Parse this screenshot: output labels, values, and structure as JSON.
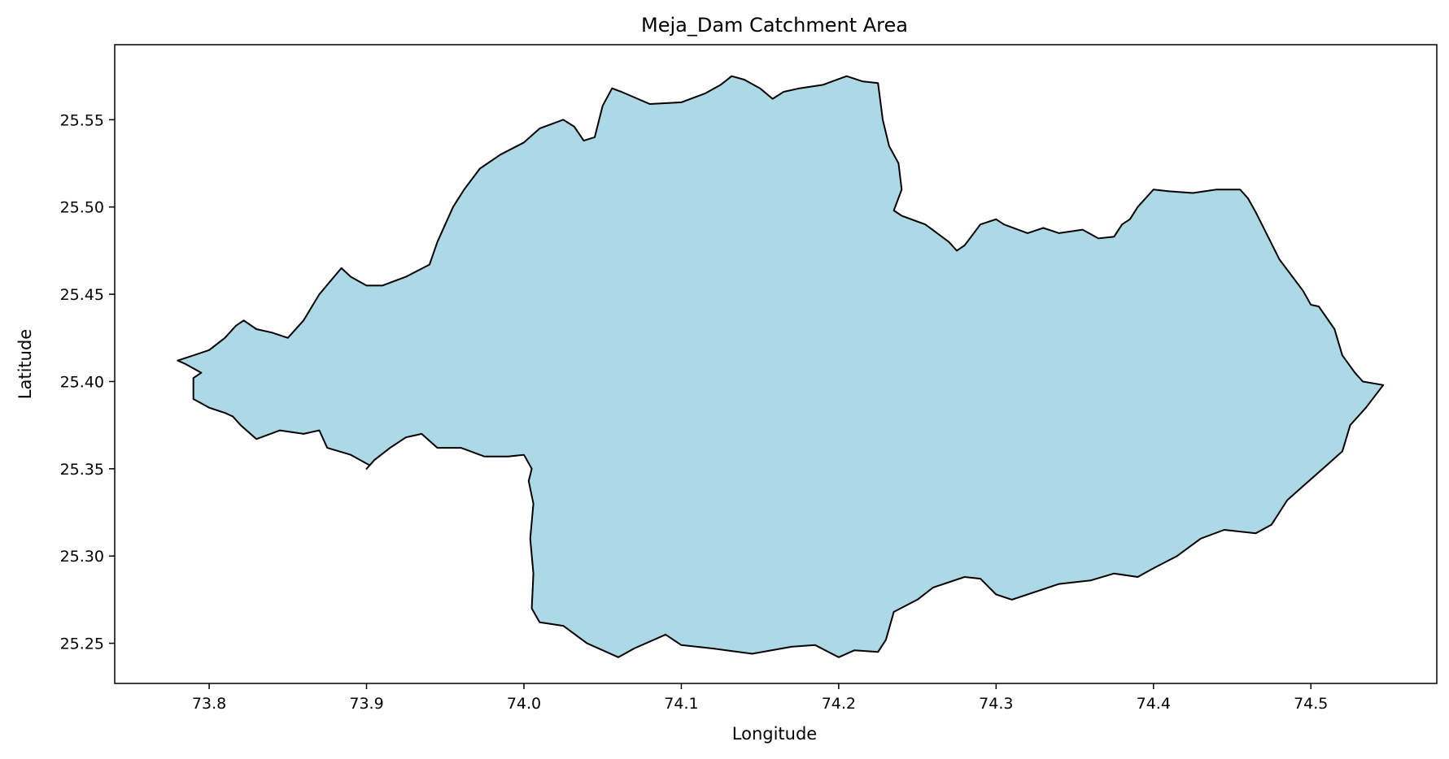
{
  "figure": {
    "title": "Meja_Dam Catchment Area",
    "xlabel": "Longitude",
    "ylabel": "Latitude",
    "background_color": "#ffffff"
  },
  "chart_data": {
    "type": "area",
    "title": "Meja_Dam Catchment Area",
    "xlabel": "Longitude",
    "ylabel": "Latitude",
    "xlim": [
      73.74,
      74.58
    ],
    "ylim": [
      25.227,
      25.593
    ],
    "x_ticks": [
      73.8,
      73.9,
      74.0,
      74.1,
      74.2,
      74.3,
      74.4,
      74.5
    ],
    "x_tick_labels": [
      "73.8",
      "73.9",
      "74.0",
      "74.1",
      "74.2",
      "74.3",
      "74.4",
      "74.5"
    ],
    "y_ticks": [
      25.25,
      25.3,
      25.35,
      25.4,
      25.45,
      25.5,
      25.55
    ],
    "y_tick_labels": [
      "25.25",
      "25.30",
      "25.35",
      "25.40",
      "25.45",
      "25.50",
      "25.55"
    ],
    "grid": false,
    "fill_color": "#add8e6",
    "edge_color": "#000000",
    "polygon": {
      "lon": [
        73.78,
        73.79,
        73.8,
        73.81,
        73.817,
        73.822,
        73.83,
        73.84,
        73.85,
        73.86,
        73.87,
        73.884,
        73.89,
        73.9,
        73.91,
        73.925,
        73.94,
        73.945,
        73.955,
        73.962,
        73.972,
        73.985,
        74.0,
        74.01,
        74.025,
        74.032,
        74.038,
        74.045,
        74.05,
        74.056,
        74.062,
        74.08,
        74.1,
        74.115,
        74.125,
        74.132,
        74.14,
        74.15,
        74.158,
        74.165,
        74.175,
        74.19,
        74.205,
        74.215,
        74.225,
        74.228,
        74.232,
        74.238,
        74.24,
        74.235,
        74.24,
        74.255,
        74.27,
        74.275,
        74.28,
        74.29,
        74.3,
        74.305,
        74.32,
        74.33,
        74.34,
        74.355,
        74.365,
        74.375,
        74.38,
        74.385,
        74.39,
        74.4,
        74.41,
        74.425,
        74.44,
        74.455,
        74.46,
        74.465,
        74.48,
        74.495,
        74.5,
        74.505,
        74.515,
        74.52,
        74.528,
        74.533,
        74.546,
        74.535,
        74.525,
        74.52,
        74.51,
        74.495,
        74.485,
        74.475,
        74.465,
        74.445,
        74.43,
        74.415,
        74.4,
        74.39,
        74.375,
        74.36,
        74.34,
        74.32,
        74.31,
        74.3,
        74.29,
        74.28,
        74.26,
        74.25,
        74.235,
        74.23,
        74.225,
        74.21,
        74.2,
        74.185,
        74.17,
        74.145,
        74.12,
        74.1,
        74.09,
        74.07,
        74.06,
        74.04,
        74.025,
        74.01,
        74.005,
        74.006,
        74.004,
        74.006,
        74.003,
        74.005,
        74.0,
        73.99,
        73.975,
        73.96,
        73.945,
        73.935,
        73.925,
        73.915,
        73.905,
        73.9,
        73.902,
        73.89,
        73.875,
        73.87,
        73.86,
        73.845,
        73.83,
        73.82,
        73.815,
        73.81,
        73.8,
        73.79,
        73.79,
        73.795,
        73.785,
        73.78
      ],
      "lat": [
        25.412,
        25.415,
        25.418,
        25.425,
        25.432,
        25.435,
        25.43,
        25.428,
        25.425,
        25.435,
        25.45,
        25.465,
        25.46,
        25.455,
        25.455,
        25.46,
        25.467,
        25.48,
        25.5,
        25.51,
        25.522,
        25.53,
        25.537,
        25.545,
        25.55,
        25.546,
        25.538,
        25.54,
        25.558,
        25.568,
        25.566,
        25.559,
        25.56,
        25.565,
        25.57,
        25.575,
        25.573,
        25.568,
        25.562,
        25.566,
        25.568,
        25.57,
        25.575,
        25.572,
        25.571,
        25.55,
        25.535,
        25.525,
        25.51,
        25.498,
        25.495,
        25.49,
        25.48,
        25.475,
        25.478,
        25.49,
        25.493,
        25.49,
        25.485,
        25.488,
        25.485,
        25.487,
        25.482,
        25.483,
        25.49,
        25.493,
        25.5,
        25.51,
        25.509,
        25.508,
        25.51,
        25.51,
        25.505,
        25.497,
        25.47,
        25.452,
        25.444,
        25.443,
        25.43,
        25.415,
        25.405,
        25.4,
        25.398,
        25.385,
        25.375,
        25.36,
        25.352,
        25.34,
        25.332,
        25.318,
        25.313,
        25.315,
        25.31,
        25.3,
        25.293,
        25.288,
        25.29,
        25.286,
        25.284,
        25.278,
        25.275,
        25.278,
        25.287,
        25.288,
        25.282,
        25.275,
        25.268,
        25.252,
        25.245,
        25.246,
        25.242,
        25.249,
        25.248,
        25.244,
        25.247,
        25.249,
        25.255,
        25.247,
        25.242,
        25.25,
        25.26,
        25.262,
        25.27,
        25.29,
        25.31,
        25.33,
        25.343,
        25.35,
        25.358,
        25.357,
        25.357,
        25.362,
        25.362,
        25.37,
        25.368,
        25.362,
        25.355,
        25.35,
        25.352,
        25.358,
        25.362,
        25.372,
        25.37,
        25.372,
        25.367,
        25.375,
        25.38,
        25.382,
        25.385,
        25.39,
        25.402,
        25.405,
        25.41,
        25.412
      ]
    }
  }
}
